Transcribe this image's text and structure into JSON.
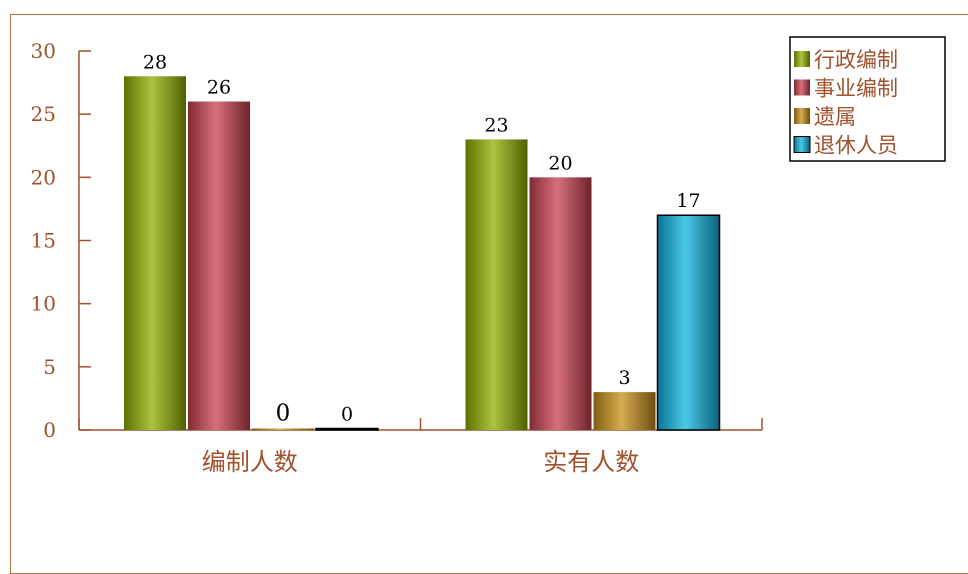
{
  "chart_data": {
    "type": "bar",
    "categories": [
      "编制人数",
      "实有人数"
    ],
    "series": [
      {
        "name": "行政编制",
        "values": [
          28,
          23
        ],
        "color": "#8fb000"
      },
      {
        "name": "事业编制",
        "values": [
          26,
          20
        ],
        "color": "#c8404f"
      },
      {
        "name": "遗属",
        "values": [
          0,
          3
        ],
        "color": "#c89018"
      },
      {
        "name": "退休人员",
        "values": [
          0,
          17
        ],
        "color": "#10b4e0"
      }
    ],
    "data_labels": [
      [
        "28",
        "26",
        "0",
        "0"
      ],
      [
        "23",
        "20",
        "3",
        "17"
      ]
    ],
    "data_label_colors": [
      [
        "#000000",
        "#000000",
        "#a0522d",
        "#000000"
      ],
      [
        "#000000",
        "#000000",
        "#000000",
        "#000000"
      ]
    ],
    "yticks": [
      "0",
      "5",
      "10",
      "15",
      "20",
      "25",
      "30"
    ],
    "ylim": [
      0,
      30
    ],
    "grid": false,
    "legend_position": "top-right",
    "axis_color": "#a0522d"
  }
}
